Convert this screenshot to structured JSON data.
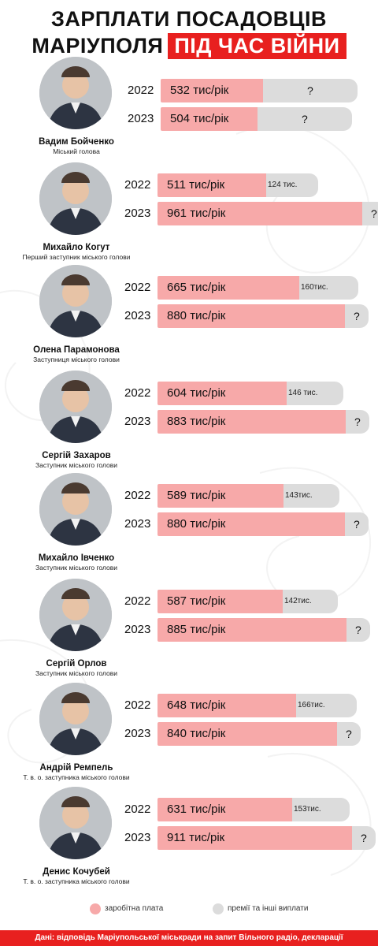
{
  "header": {
    "title_line1": "ЗАРПЛАТИ ПОСАДОВЦІВ",
    "title_line2": "МАРІУПОЛЯ",
    "title_accent": "ПІД ЧАС ВІЙНИ"
  },
  "colors": {
    "salary": "#f7a9a9",
    "bonus": "#dcdcdc",
    "accent": "#e8201f"
  },
  "legend": {
    "salary": "заробітна плата",
    "bonus": "премії та інші виплати"
  },
  "footer": "Дані: відповідь Маріупольської міськради на запит Вільного радіо, декларації",
  "chart_data": {
    "type": "bar",
    "orientation": "horizontal",
    "unit": "тис/рік",
    "series": [
      {
        "key": "salary",
        "label": "заробітна плата"
      },
      {
        "key": "bonus",
        "label": "премії та інші виплати"
      }
    ],
    "people": [
      {
        "name": "Вадим Бойченко",
        "role": "Міський голова",
        "bars": [
          {
            "year": "2022",
            "salary": 532,
            "salary_label": "532 тис/рік",
            "bonus": null,
            "bonus_label": "?"
          },
          {
            "year": "2023",
            "salary": 504,
            "salary_label": "504 тис/рік",
            "bonus": null,
            "bonus_label": "?"
          }
        ]
      },
      {
        "name": "Михайло Когут",
        "role": "Перший заступник міського голови",
        "bars": [
          {
            "year": "2022",
            "salary": 511,
            "salary_label": "511 тис/рік",
            "bonus": 124,
            "bonus_label": "124 тис."
          },
          {
            "year": "2023",
            "salary": 961,
            "salary_label": "961 тис/рік",
            "bonus": null,
            "bonus_label": "?"
          }
        ]
      },
      {
        "name": "Олена Парамонова",
        "role": "Заступниця міського голови",
        "bars": [
          {
            "year": "2022",
            "salary": 665,
            "salary_label": "665 тис/рік",
            "bonus": 160,
            "bonus_label": "160тис."
          },
          {
            "year": "2023",
            "salary": 880,
            "salary_label": "880 тис/рік",
            "bonus": null,
            "bonus_label": "?"
          }
        ]
      },
      {
        "name": "Сергій Захаров",
        "role": "Заступник міського голови",
        "bars": [
          {
            "year": "2022",
            "salary": 604,
            "salary_label": "604 тис/рік",
            "bonus": 146,
            "bonus_label": "146 тис."
          },
          {
            "year": "2023",
            "salary": 883,
            "salary_label": "883 тис/рік",
            "bonus": null,
            "bonus_label": "?"
          }
        ]
      },
      {
        "name": "Михайло Івченко",
        "role": "Заступник міського голови",
        "bars": [
          {
            "year": "2022",
            "salary": 589,
            "salary_label": "589 тис/рік",
            "bonus": 143,
            "bonus_label": "143тис."
          },
          {
            "year": "2023",
            "salary": 880,
            "salary_label": "880 тис/рік",
            "bonus": null,
            "bonus_label": "?"
          }
        ]
      },
      {
        "name": "Сергій Орлов",
        "role": "Заступник міського голови",
        "bars": [
          {
            "year": "2022",
            "salary": 587,
            "salary_label": "587 тис/рік",
            "bonus": 142,
            "bonus_label": "142тис."
          },
          {
            "year": "2023",
            "salary": 885,
            "salary_label": "885 тис/рік",
            "bonus": null,
            "bonus_label": "?"
          }
        ]
      },
      {
        "name": "Андрій Ремпель",
        "role": "Т. в. о. заступника міського голови",
        "bars": [
          {
            "year": "2022",
            "salary": 648,
            "salary_label": "648 тис/рік",
            "bonus": 166,
            "bonus_label": "166тис."
          },
          {
            "year": "2023",
            "salary": 840,
            "salary_label": "840 тис/рік",
            "bonus": null,
            "bonus_label": "?"
          }
        ]
      },
      {
        "name": "Денис Кочубей",
        "role": "Т. в. о. заступника міського голови",
        "bars": [
          {
            "year": "2022",
            "salary": 631,
            "salary_label": "631 тис/рік",
            "bonus": 153,
            "bonus_label": "153тис."
          },
          {
            "year": "2023",
            "salary": 911,
            "salary_label": "911 тис/рік",
            "bonus": null,
            "bonus_label": "?"
          }
        ]
      }
    ]
  }
}
